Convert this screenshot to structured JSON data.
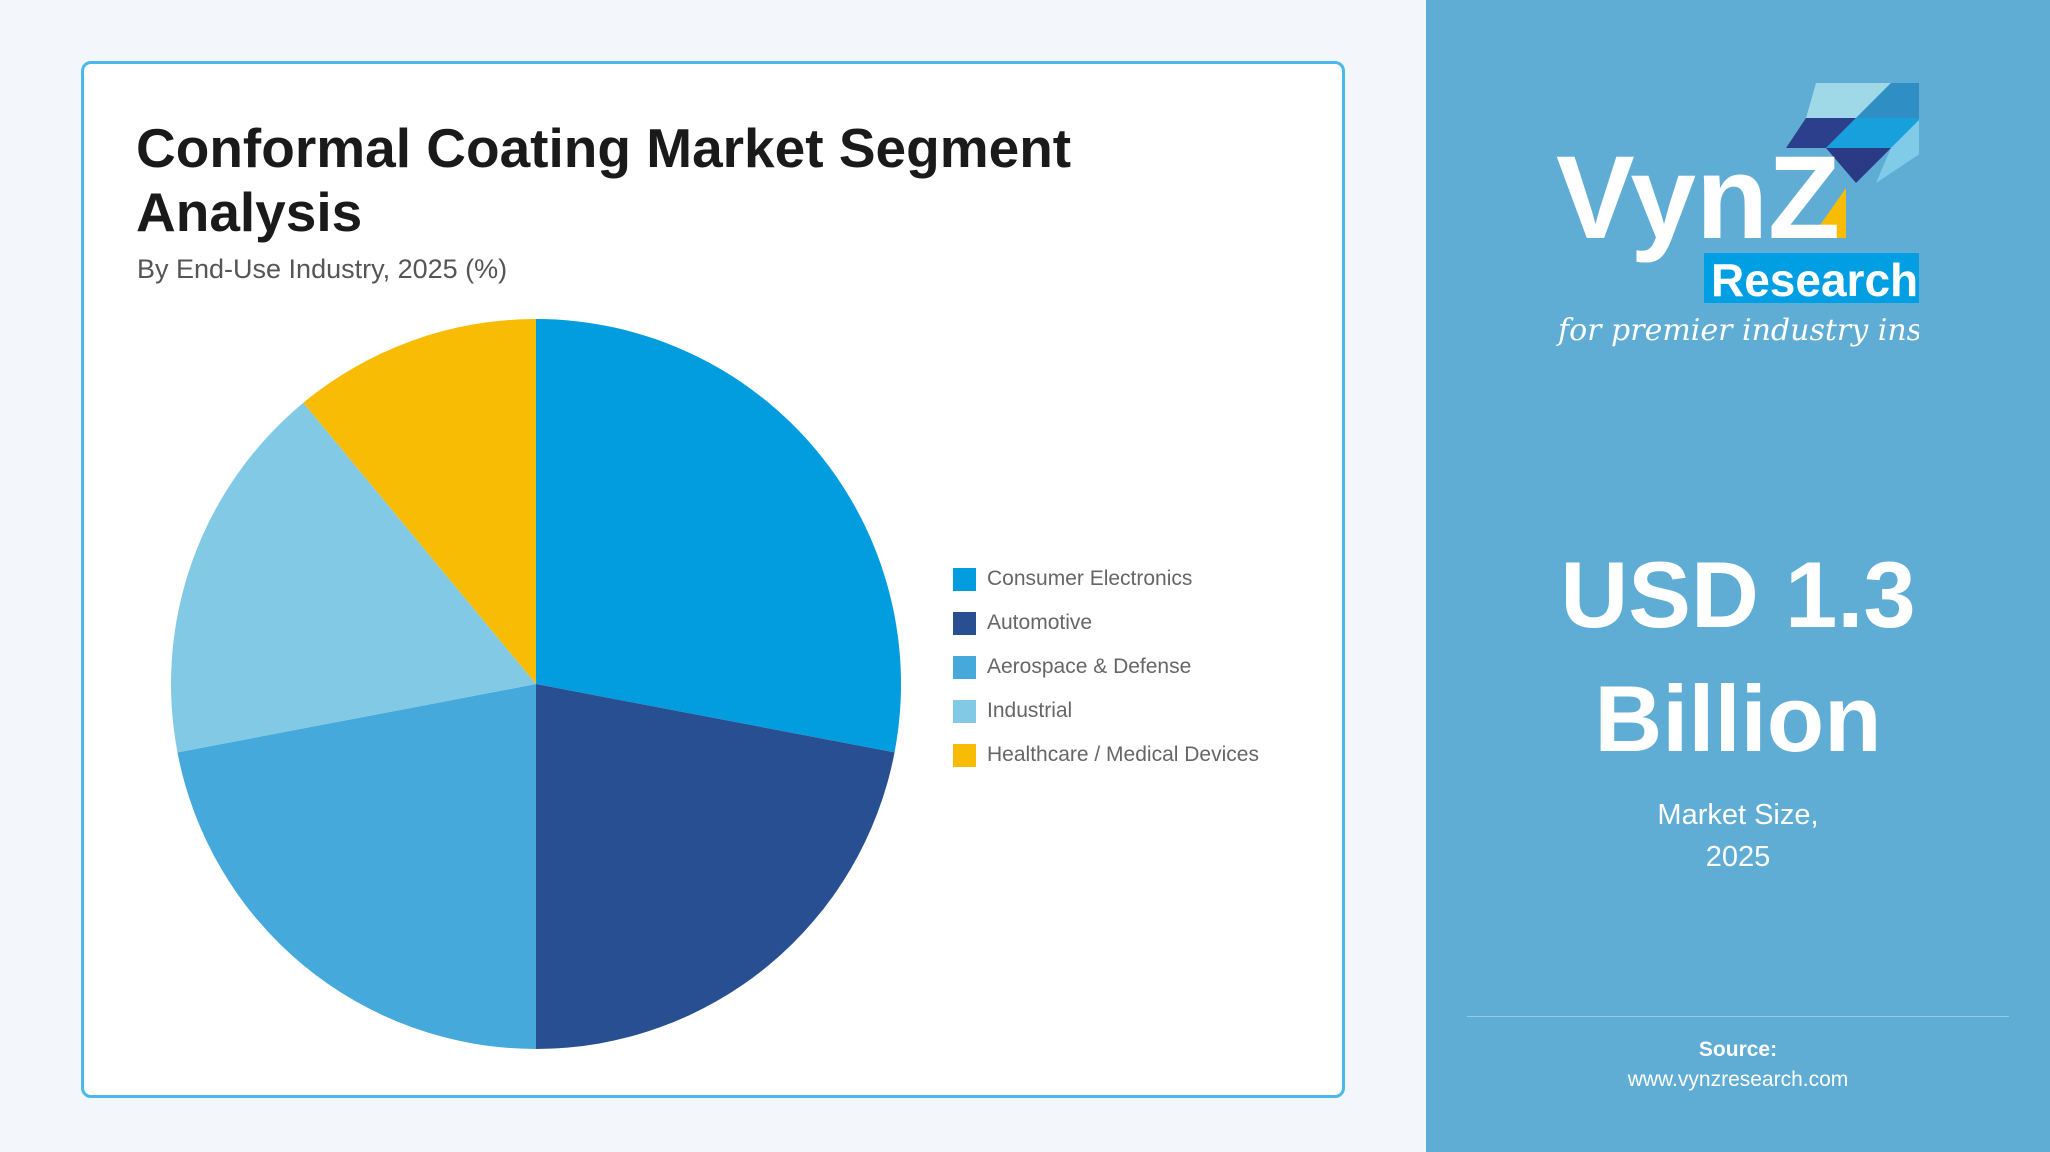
{
  "chart_data": {
    "type": "pie",
    "title": "Conformal Coating Market Segment Analysis",
    "subtitle": "By End-Use Industry, 2025 (%)",
    "categories": [
      "Consumer Electronics",
      "Automotive",
      "Aerospace & Defense",
      "Industrial",
      "Healthcare / Medical Devices"
    ],
    "values": [
      28,
      22,
      22,
      17,
      11
    ],
    "colors": [
      "#019ddf",
      "#284f91",
      "#45aadb",
      "#81c9e5",
      "#f9bc05"
    ],
    "start_angle": "12 o'clock, clockwise",
    "legend_position": "right"
  },
  "brand": {
    "logo_text": "VynZ",
    "logo_sub": "Research",
    "tagline": "for premier industry insights"
  },
  "stat": {
    "value_line1": "USD 1.3",
    "value_line2": "Billion",
    "label_line1": "Market Size,",
    "label_line2": "2025"
  },
  "source": {
    "label": "Source:",
    "url": "www.vynzresearch.com"
  },
  "colors": {
    "panel": "#5fadd4",
    "card_border": "#4ab8ea"
  }
}
